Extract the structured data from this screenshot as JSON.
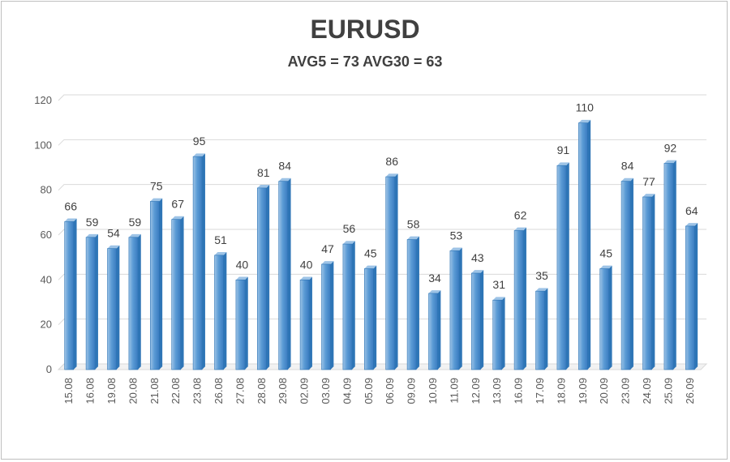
{
  "chart_data": {
    "type": "bar",
    "title": "EURUSD",
    "subtitle": "AVG5 = 73 AVG30 = 63",
    "categories": [
      "15.08",
      "16.08",
      "19.08",
      "20.08",
      "21.08",
      "22.08",
      "23.08",
      "26.08",
      "27.08",
      "28.08",
      "29.08",
      "02.09",
      "03.09",
      "04.09",
      "05.09",
      "06.09",
      "09.09",
      "10.09",
      "11.09",
      "12.09",
      "13.09",
      "16.09",
      "17.09",
      "18.09",
      "19.09",
      "20.09",
      "23.09",
      "24.09",
      "25.09",
      "26.09"
    ],
    "values": [
      66,
      59,
      54,
      59,
      75,
      67,
      95,
      51,
      40,
      81,
      84,
      40,
      47,
      56,
      45,
      86,
      58,
      34,
      53,
      43,
      31,
      62,
      35,
      91,
      110,
      45,
      84,
      77,
      92,
      64
    ],
    "yticks": [
      0,
      20,
      40,
      60,
      80,
      100,
      120
    ],
    "ylim": [
      0,
      120
    ],
    "grid": true,
    "legend": "none",
    "colors": {
      "bar_front": "#5b9bd5",
      "bar_light": "#9dc3e6",
      "bar_dark": "#2e75b6",
      "grid": "#d9d9d9"
    }
  }
}
